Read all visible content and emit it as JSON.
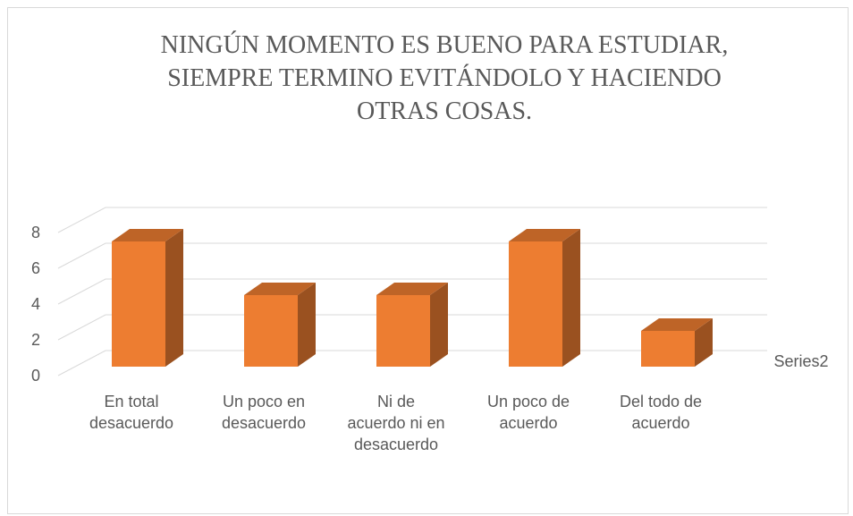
{
  "chart_data": {
    "type": "bar3d",
    "title": "NINGÚN MOMENTO ES BUENO PARA ESTUDIAR,\nSIEMPRE TERMINO EVITÁNDOLO Y HACIENDO\nOTRAS COSAS.",
    "categories": [
      "En total\ndesacuerdo",
      "Un poco en\ndesacuerdo",
      "Ni de\nacuerdo ni en\ndesacuerdo",
      "Un poco de\nacuerdo",
      "Del todo de\nacuerdo"
    ],
    "series": [
      {
        "name": "Series2",
        "color": "#ed7d31",
        "values": [
          7,
          4,
          4,
          7,
          2
        ]
      }
    ],
    "ylim": [
      0,
      8
    ],
    "yticks": [
      0,
      2,
      4,
      6,
      8
    ],
    "grid": true
  }
}
